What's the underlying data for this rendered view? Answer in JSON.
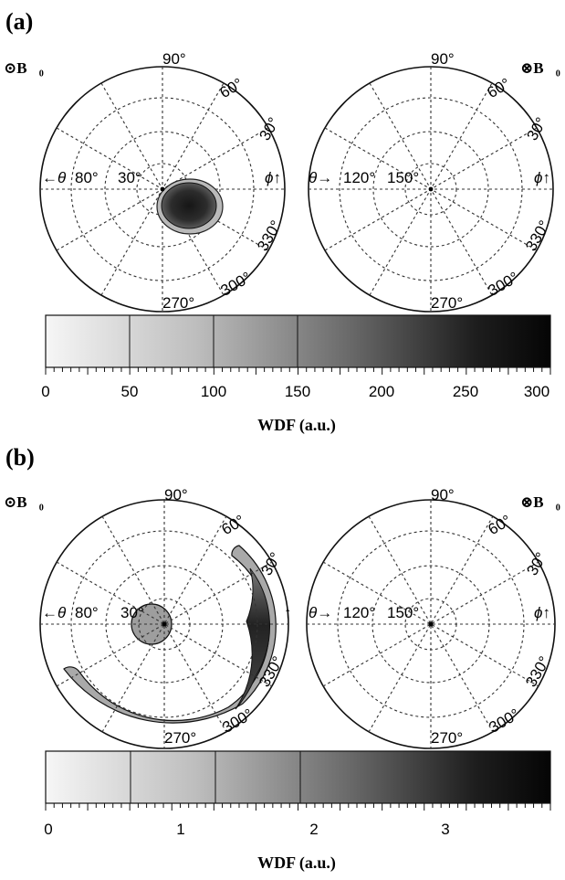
{
  "figure": {
    "panels": [
      {
        "id": "a",
        "label": "(a)",
        "left_plot": {
          "field_symbol": "⊙B⃗₀",
          "theta_label": "←θ",
          "phi_label": "ϕ↑",
          "theta_ticks": [
            "80°",
            "30°"
          ],
          "phi_ticks": [
            "90°",
            "60°",
            "30°",
            "330°",
            "300°",
            "270°"
          ]
        },
        "right_plot": {
          "field_symbol": "⊗B⃗₀",
          "theta_label": "θ→",
          "phi_label": "ϕ↑",
          "theta_ticks": [
            "120°",
            "150°"
          ],
          "phi_ticks": [
            "90°",
            "60°",
            "30°",
            "330°",
            "300°",
            "270°"
          ]
        },
        "colorbar": {
          "title": "WDF (a.u.)",
          "ticks": [
            "0",
            "50",
            "100",
            "150",
            "200",
            "250",
            "300"
          ],
          "range": [
            0,
            300
          ]
        }
      },
      {
        "id": "b",
        "label": "(b)",
        "left_plot": {
          "field_symbol": "⊙B⃗₀",
          "theta_label": "←θ",
          "phi_label": "↑",
          "theta_ticks": [
            "80°",
            "30°"
          ],
          "phi_ticks": [
            "90°",
            "60°",
            "30°",
            "330°",
            "300°",
            "270°"
          ]
        },
        "right_plot": {
          "field_symbol": "⊗B⃗₀",
          "theta_label": "θ→",
          "phi_label": "ϕ↑",
          "theta_ticks": [
            "120°",
            "150°"
          ],
          "phi_ticks": [
            "90°",
            "60°",
            "30°",
            "330°",
            "300°",
            "270°"
          ]
        },
        "colorbar": {
          "title": "WDF (a.u.)",
          "ticks": [
            "0",
            "1",
            "2",
            "3"
          ],
          "range": [
            0,
            3.8
          ]
        }
      }
    ]
  }
}
